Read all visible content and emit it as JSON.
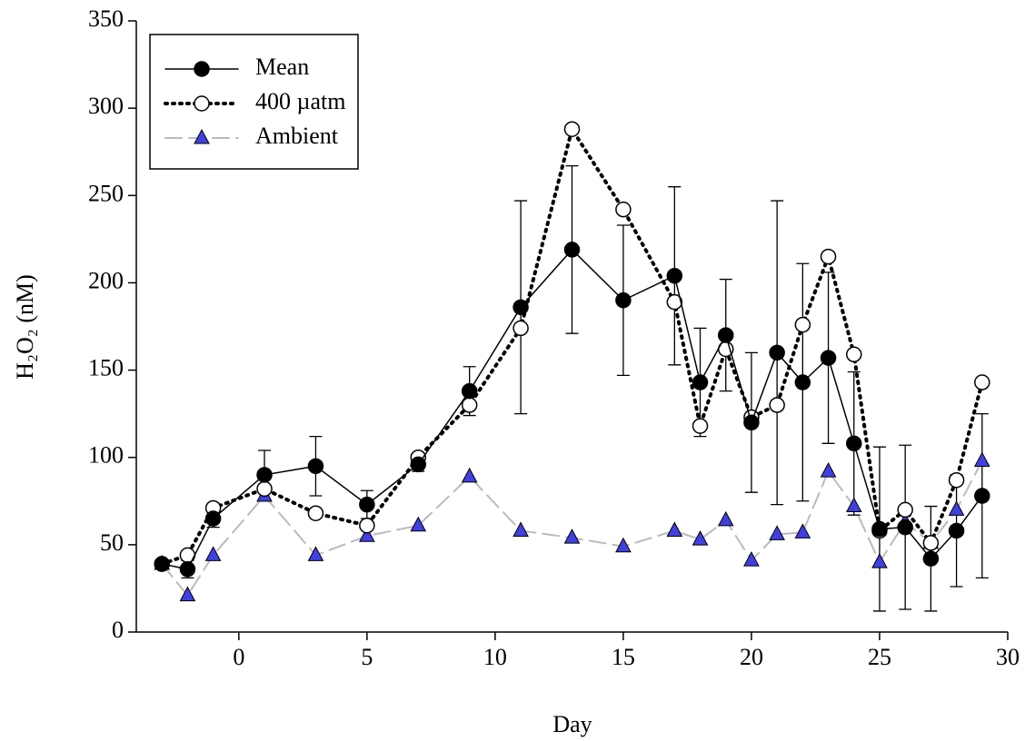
{
  "chart_data": {
    "type": "line",
    "x_label": "Day",
    "y_label": "H₂O₂ (nM)",
    "x": [
      -3,
      -2,
      -1,
      1,
      3,
      5,
      7,
      9,
      11,
      13,
      15,
      17,
      18,
      19,
      20,
      21,
      22,
      23,
      24,
      25,
      26,
      27,
      28,
      29
    ],
    "series": [
      {
        "name": "Mean",
        "color": "#000000",
        "marker": "filled-circle",
        "dash": "solid",
        "values": [
          39,
          36,
          65,
          90,
          95,
          73,
          96,
          138,
          186,
          219,
          190,
          204,
          143,
          170,
          120,
          160,
          143,
          157,
          108,
          59,
          60,
          42,
          58,
          78
        ],
        "errors": [
          null,
          5,
          5,
          14,
          17,
          8,
          4,
          14,
          61,
          48,
          43,
          51,
          31,
          32,
          40,
          87,
          68,
          49,
          41,
          47,
          47,
          30,
          32,
          47
        ]
      },
      {
        "name": "400 µatm",
        "color": "#000000",
        "marker": "open-circle",
        "dash": "dotted",
        "values": [
          39,
          44,
          71,
          82,
          68,
          61,
          100,
          130,
          174,
          288,
          242,
          189,
          118,
          162,
          123,
          130,
          176,
          215,
          159,
          58,
          70,
          51,
          87,
          143
        ]
      },
      {
        "name": "Ambient",
        "color": "#4040e0",
        "marker": "triangle",
        "dash": "dashed",
        "values": [
          39,
          21,
          44,
          78,
          44,
          55,
          61,
          89,
          58,
          54,
          49,
          58,
          53,
          64,
          41,
          56,
          57,
          92,
          72,
          40,
          63,
          51,
          70,
          98
        ]
      }
    ],
    "xlim": [
      -4,
      30
    ],
    "xticks": [
      0,
      5,
      10,
      15,
      20,
      25,
      30
    ],
    "ylim": [
      0,
      350
    ],
    "yticks": [
      0,
      50,
      100,
      150,
      200,
      250,
      300,
      350
    ],
    "legend": "upper left",
    "grid": false
  }
}
